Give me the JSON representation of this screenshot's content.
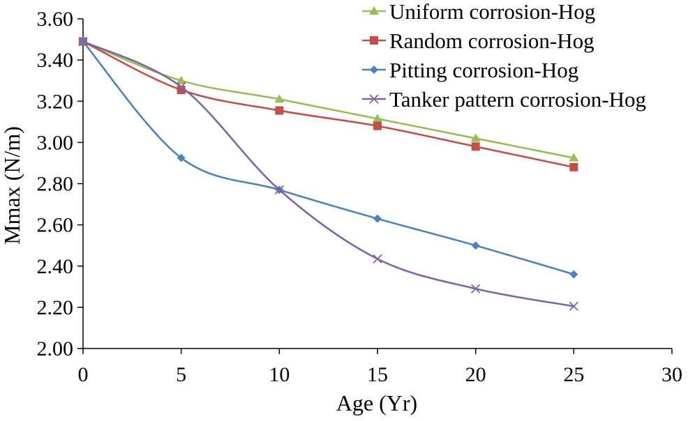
{
  "chart_data": {
    "type": "line",
    "title": "",
    "xlabel": "Age (Yr)",
    "ylabel": "Mmax (N/m)",
    "xlim": [
      0,
      30
    ],
    "ylim": [
      2.0,
      3.6
    ],
    "x_ticks": [
      0,
      5,
      10,
      15,
      20,
      25,
      30
    ],
    "x_tick_labels": [
      "0",
      "5",
      "10",
      "15",
      "20",
      "25",
      "30"
    ],
    "y_ticks": [
      2.0,
      2.2,
      2.4,
      2.6,
      2.8,
      3.0,
      3.2,
      3.4,
      3.6
    ],
    "y_tick_labels": [
      "2.00",
      "2.20",
      "2.40",
      "2.60",
      "2.80",
      "3.00",
      "3.20",
      "3.40",
      "3.60"
    ],
    "grid": false,
    "legend_position": "top-right",
    "x": [
      0,
      5,
      10,
      15,
      20,
      25
    ],
    "series": [
      {
        "name": "Uniform corrosion-Hog",
        "color": "#9bbb59",
        "marker": "triangle",
        "values": [
          3.49,
          3.3,
          3.21,
          3.115,
          3.02,
          2.925
        ]
      },
      {
        "name": "Random corrosion-Hog",
        "color": "#c0504d",
        "marker": "square",
        "values": [
          3.49,
          3.255,
          3.155,
          3.08,
          2.98,
          2.88
        ]
      },
      {
        "name": "Pitting corrosion-Hog",
        "color": "#4f81bd",
        "marker": "diamond",
        "values": [
          3.49,
          2.925,
          2.77,
          2.63,
          2.5,
          2.36
        ]
      },
      {
        "name": "Tanker pattern corrosion-Hog",
        "color": "#8064a2",
        "marker": "x",
        "values": [
          3.49,
          3.27,
          2.77,
          2.435,
          2.29,
          2.205
        ]
      }
    ]
  }
}
